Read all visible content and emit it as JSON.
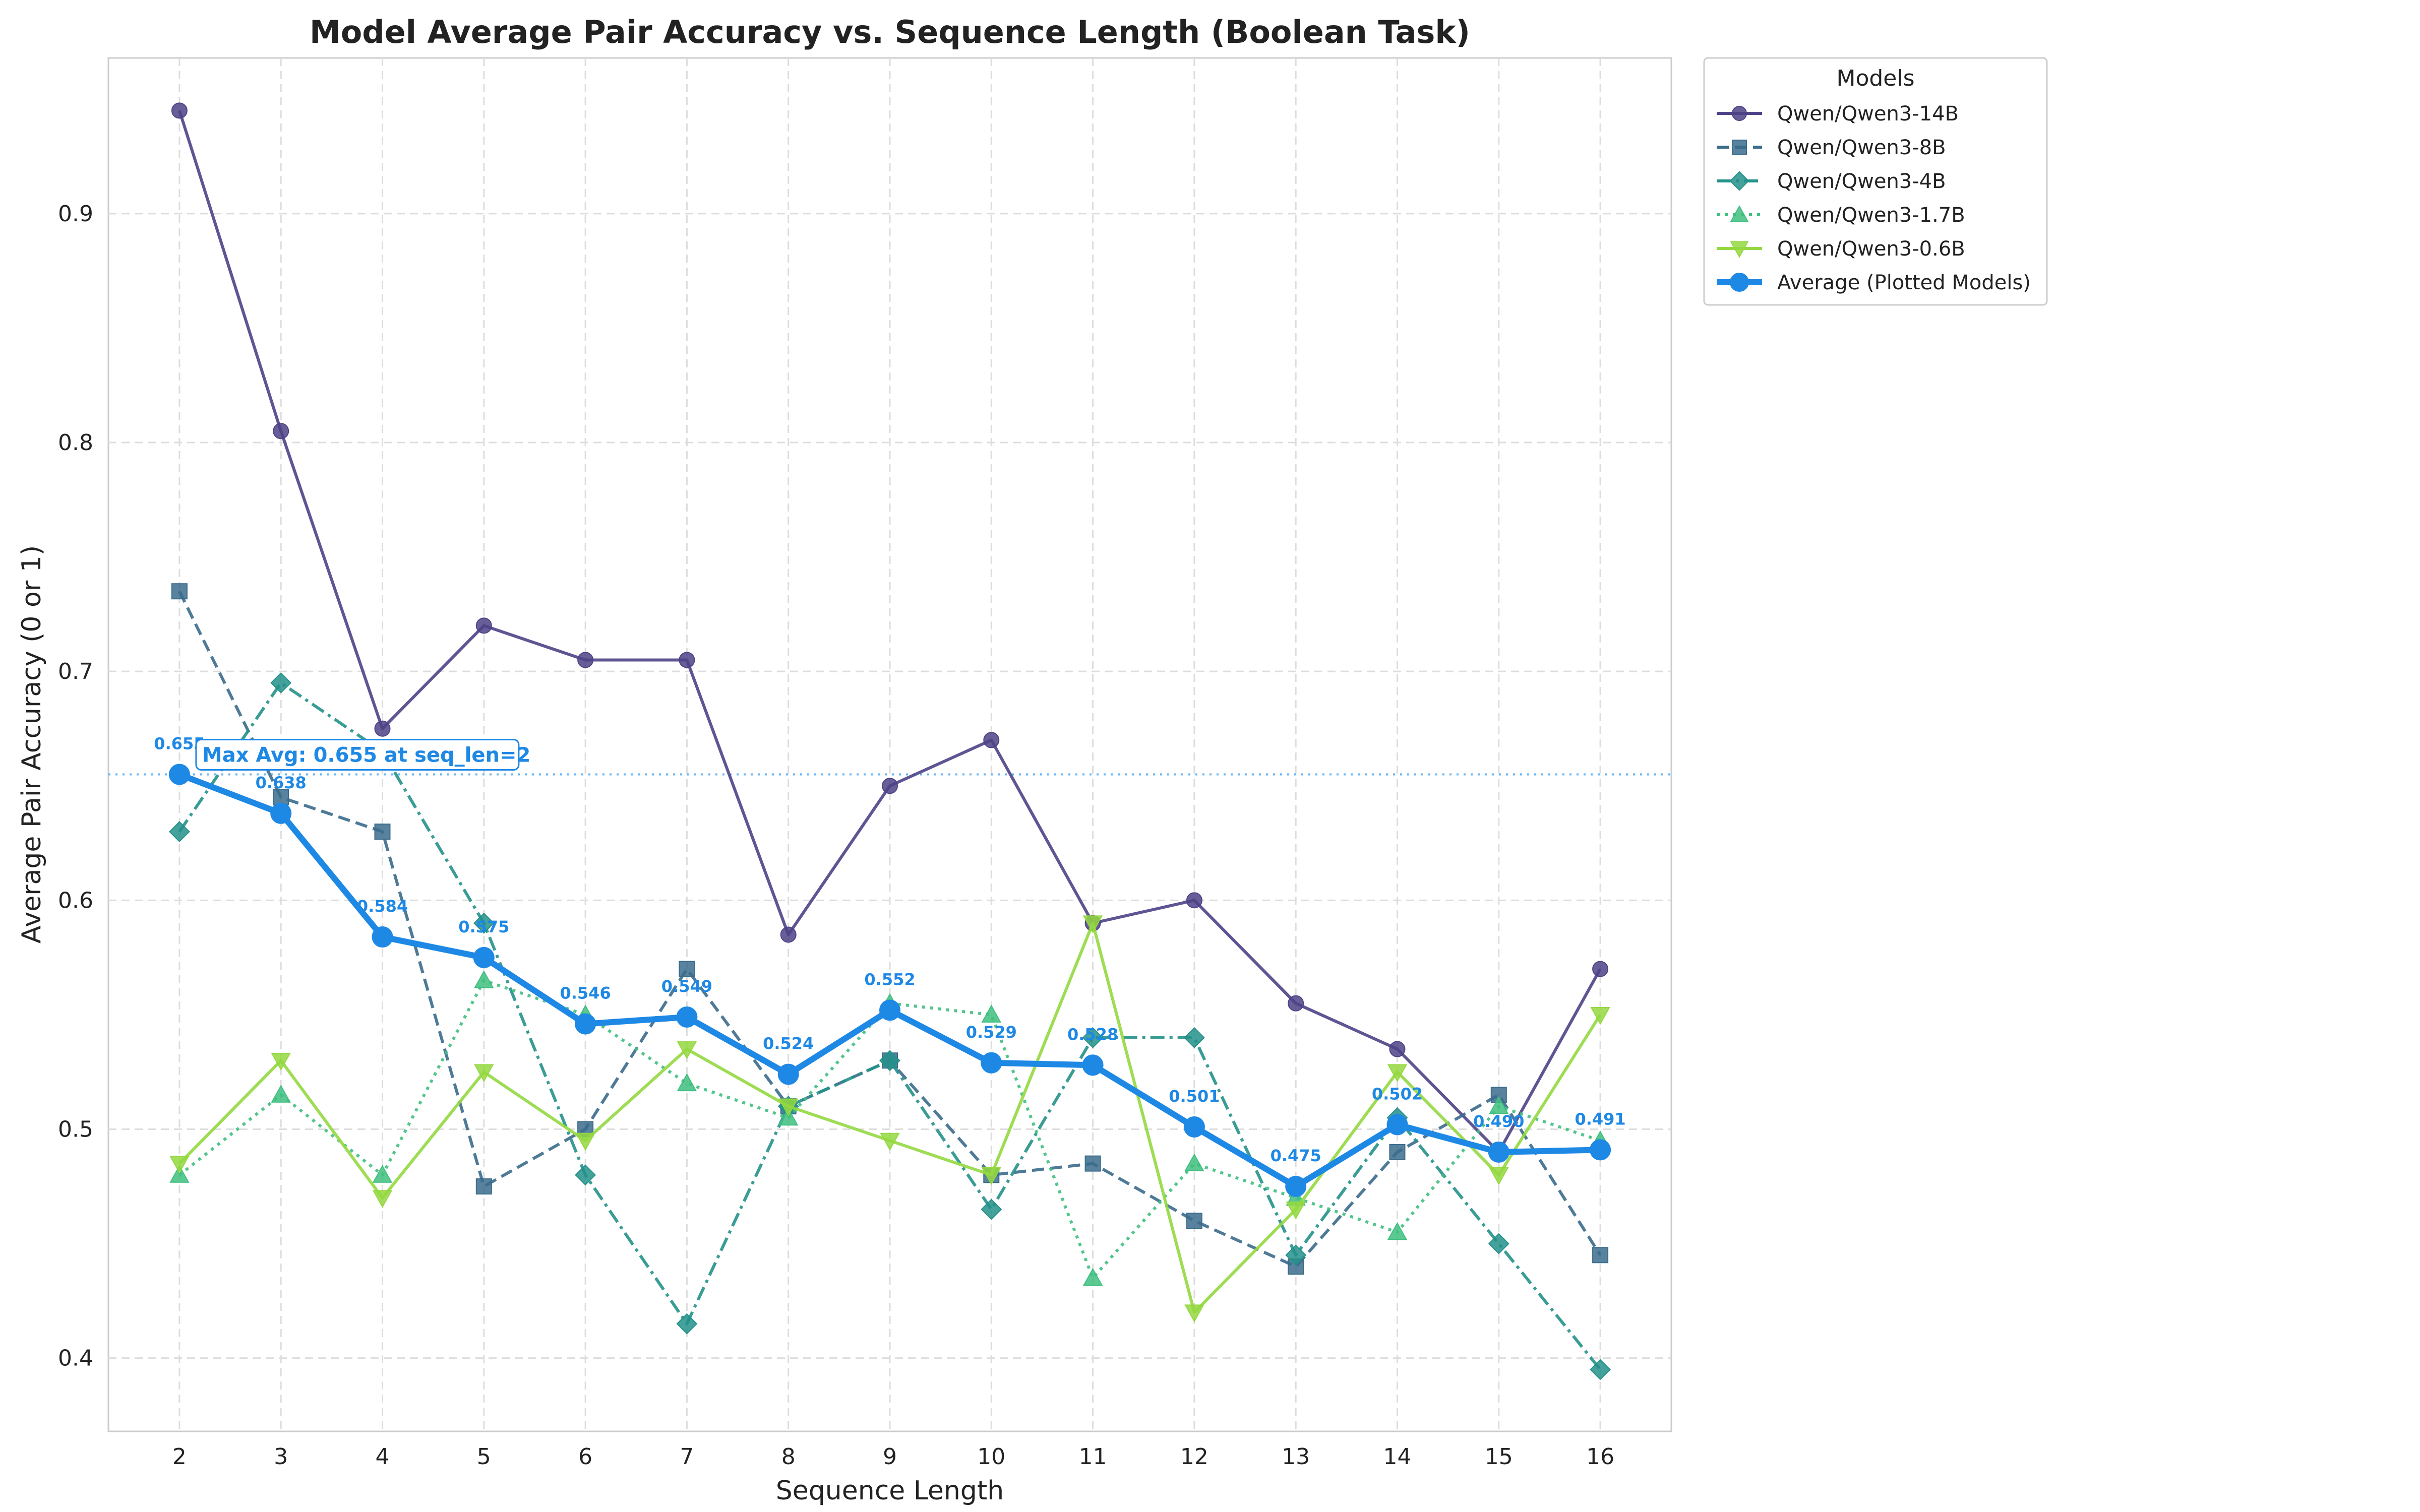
{
  "chart_data": {
    "type": "line",
    "title": "Model Average Pair Accuracy vs. Sequence Length (Boolean Task)",
    "xlabel": "Sequence Length",
    "ylabel": "Average Pair Accuracy (0 or 1)",
    "x": [
      2,
      3,
      4,
      5,
      6,
      7,
      8,
      9,
      10,
      11,
      12,
      13,
      14,
      15,
      16
    ],
    "xlim": [
      1.3,
      16.7
    ],
    "ylim": [
      0.368,
      0.968
    ],
    "yticks": [
      0.4,
      0.5,
      0.6,
      0.7,
      0.8,
      0.9
    ],
    "grid": true,
    "legend": {
      "title": "Models",
      "placement": "outside-right-top"
    },
    "series": [
      {
        "name": "Qwen/Qwen3-14B",
        "color": "#4e4387",
        "marker": "circle",
        "dash": "solid",
        "values": [
          0.945,
          0.805,
          0.675,
          0.72,
          0.705,
          0.705,
          0.585,
          0.65,
          0.67,
          0.59,
          0.6,
          0.555,
          0.535,
          0.49,
          0.57
        ]
      },
      {
        "name": "Qwen/Qwen3-8B",
        "color": "#3b6c8c",
        "marker": "square",
        "dash": "dashed",
        "values": [
          0.735,
          0.645,
          0.63,
          0.475,
          0.5,
          0.57,
          0.51,
          0.53,
          0.48,
          0.485,
          0.46,
          0.44,
          0.49,
          0.515,
          0.445
        ]
      },
      {
        "name": "Qwen/Qwen3-4B",
        "color": "#24918a",
        "marker": "diamond",
        "dash": "dashdot",
        "values": [
          0.63,
          0.695,
          0.665,
          0.59,
          0.48,
          0.415,
          0.51,
          0.53,
          0.465,
          0.54,
          0.54,
          0.445,
          0.505,
          0.45,
          0.395
        ]
      },
      {
        "name": "Qwen/Qwen3-1.7B",
        "color": "#3fbf7f",
        "marker": "triangle-up",
        "dash": "dotted",
        "values": [
          0.48,
          0.515,
          0.48,
          0.565,
          0.55,
          0.52,
          0.505,
          0.555,
          0.55,
          0.435,
          0.485,
          0.47,
          0.455,
          0.51,
          0.495
        ]
      },
      {
        "name": "Qwen/Qwen3-0.6B",
        "color": "#94d840",
        "marker": "triangle-down",
        "dash": "solid",
        "values": [
          0.485,
          0.53,
          0.47,
          0.525,
          0.495,
          0.535,
          0.51,
          0.495,
          0.48,
          0.59,
          0.42,
          0.465,
          0.525,
          0.48,
          0.55
        ]
      },
      {
        "name": "Average (Plotted Models)",
        "color": "#1e88e5",
        "marker": "circle",
        "dash": "solid",
        "bold": true,
        "values": [
          0.655,
          0.638,
          0.584,
          0.575,
          0.546,
          0.549,
          0.524,
          0.552,
          0.529,
          0.528,
          0.501,
          0.475,
          0.502,
          0.49,
          0.491
        ],
        "labels": [
          "0.655",
          "0.638",
          "0.584",
          "0.575",
          "0.546",
          "0.549",
          "0.524",
          "0.552",
          "0.529",
          "0.528",
          "0.501",
          "0.475",
          "0.502",
          "0.490",
          "0.491"
        ]
      }
    ],
    "max_line": {
      "value": 0.655,
      "color": "#64b5f6"
    },
    "annotation": {
      "text": "Max Avg: 0.655 at seq_len=2",
      "x": 2,
      "y": 0.655
    }
  }
}
